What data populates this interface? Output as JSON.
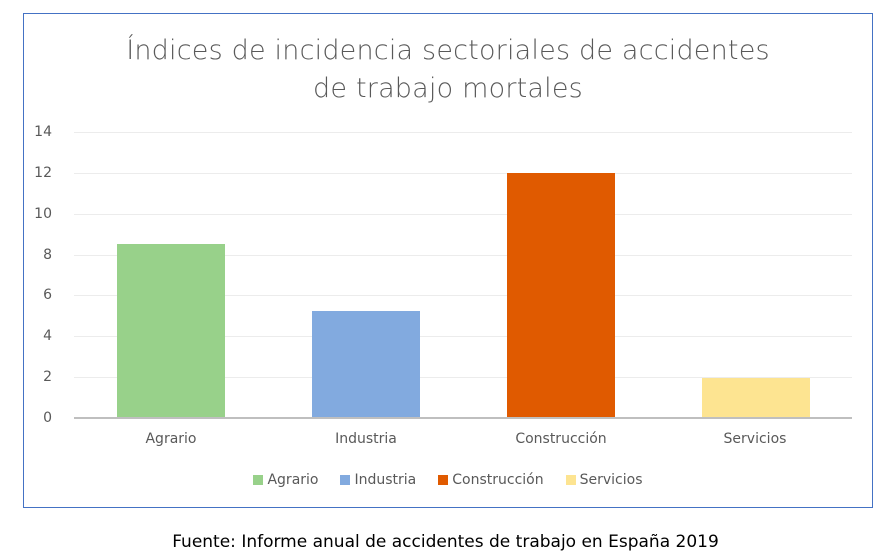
{
  "chart_data": {
    "type": "bar",
    "title": "Índices de incidencia sectoriales de accidentes de trabajo mortales",
    "title_lines": [
      "Índices de incidencia sectoriales de accidentes",
      "de trabajo mortales"
    ],
    "categories": [
      "Agrario",
      "Industria",
      "Construcción",
      "Servicios"
    ],
    "values": [
      8.5,
      5.2,
      12.0,
      1.9
    ],
    "colors": [
      "#98d18a",
      "#82aadf",
      "#e05a00",
      "#fde491"
    ],
    "xlabel": "",
    "ylabel": "",
    "ylim": [
      0,
      14
    ],
    "yticks": [
      "0",
      "2",
      "4",
      "6",
      "8",
      "10",
      "12",
      "14"
    ],
    "grid": true,
    "legend": {
      "position": "bottom",
      "entries": [
        "Agrario",
        "Industria",
        "Construcción",
        "Servicios"
      ]
    }
  },
  "source": "Fuente: Informe anual de accidentes de trabajo en España 2019"
}
